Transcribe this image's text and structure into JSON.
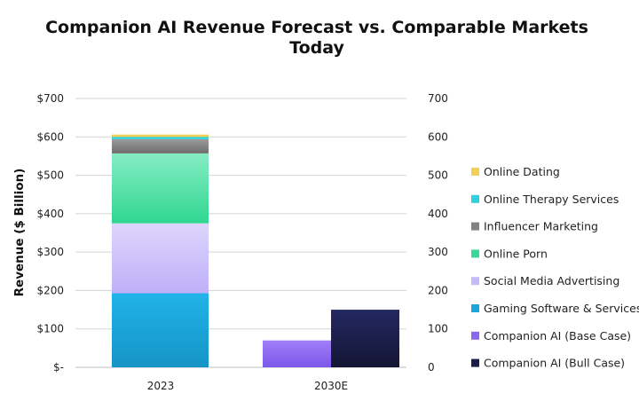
{
  "chart_data": {
    "type": "bar",
    "stacked": true,
    "title": [
      "Companion AI Revenue Forecast vs. Comparable Markets",
      "Today"
    ],
    "xlabel": "",
    "ylabel": "Revenue ($ Billion)",
    "categories": [
      "2023",
      "2030E"
    ],
    "ylim": [
      0,
      700
    ],
    "yticks_left": [
      "$-",
      "$100",
      "$200",
      "$300",
      "$400",
      "$500",
      "$600",
      "$700"
    ],
    "yticks_right": [
      "0",
      "100",
      "200",
      "300",
      "400",
      "500",
      "600",
      "700"
    ],
    "grid": true,
    "legend_position": "right",
    "series": [
      {
        "name": "Gaming Software & Services",
        "color": "#1aa6dc",
        "category": "2023",
        "value": 193
      },
      {
        "name": "Social Media Advertising",
        "color": "#c6b9fb",
        "category": "2023",
        "value": 182
      },
      {
        "name": "Online Porn",
        "color": "#3ad898",
        "category": "2023",
        "value": 182
      },
      {
        "name": "Influencer Marketing",
        "color": "#828282",
        "category": "2023",
        "value": 37
      },
      {
        "name": "Online Therapy Services",
        "color": "#2fd1df",
        "category": "2023",
        "value": 6
      },
      {
        "name": "Online Dating",
        "color": "#f4cf57",
        "category": "2023",
        "value": 6
      },
      {
        "name": "Companion AI (Base Case)",
        "color": "#8b67f0",
        "category": "2030E",
        "value": 70
      },
      {
        "name": "Companion AI (Bull Case)",
        "color": "#1b1d48",
        "category": "2030E",
        "value": 150
      }
    ],
    "legend": [
      {
        "name": "Online Dating",
        "color": "#f4cf57"
      },
      {
        "name": "Online Therapy Services",
        "color": "#2fd1df"
      },
      {
        "name": "Influencer Marketing",
        "color": "#828282"
      },
      {
        "name": "Online Porn",
        "color": "#3ad898"
      },
      {
        "name": "Social Media Advertising",
        "color": "#c6b9fb"
      },
      {
        "name": "Gaming Software & Services",
        "color": "#1aa6dc"
      },
      {
        "name": "Companion AI (Base Case)",
        "color": "#8b67f0"
      },
      {
        "name": "Companion AI (Bull Case)",
        "color": "#1b1d48"
      }
    ]
  }
}
